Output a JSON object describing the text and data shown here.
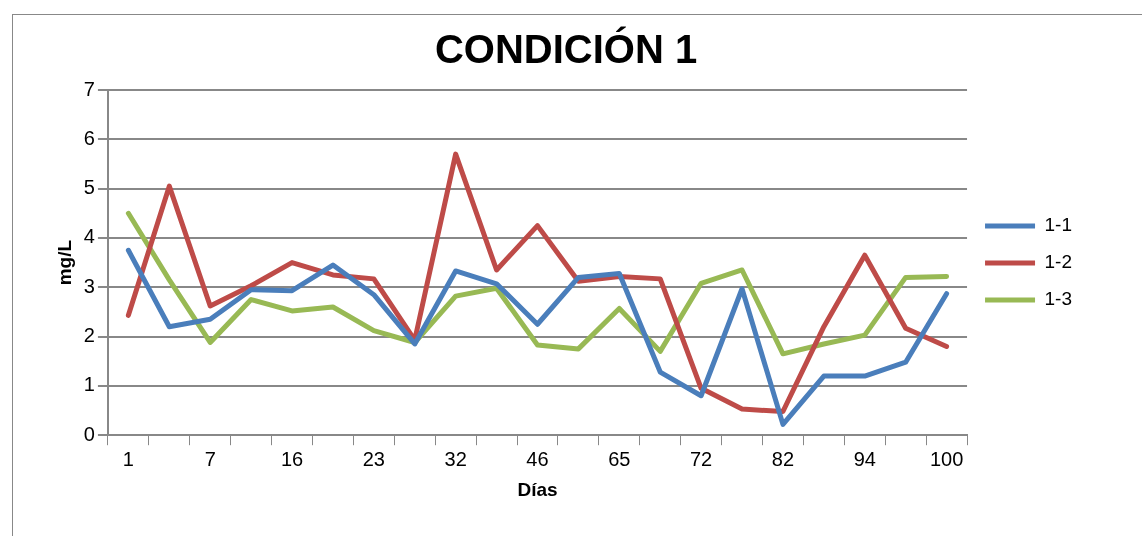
{
  "chart_data": {
    "type": "line",
    "title": "CONDICIÓN 1",
    "xlabel": "Días",
    "ylabel": "mg/L",
    "categories": [
      "1",
      null,
      "7",
      null,
      "16",
      null,
      "23",
      null,
      "32",
      null,
      "46",
      null,
      "65",
      null,
      "72",
      null,
      "82",
      null,
      "94",
      null,
      "100"
    ],
    "series": [
      {
        "name": "1-1",
        "color": "#4a7ebb",
        "values": [
          3.75,
          2.2,
          2.35,
          2.95,
          2.93,
          3.45,
          2.85,
          1.85,
          3.33,
          3.07,
          2.25,
          3.2,
          3.28,
          1.28,
          0.8,
          2.97,
          0.22,
          1.2,
          1.2,
          1.48,
          2.87
        ]
      },
      {
        "name": "1-2",
        "color": "#be4b48",
        "values": [
          2.43,
          5.05,
          2.62,
          3.03,
          3.5,
          3.25,
          3.17,
          1.93,
          5.7,
          3.35,
          4.25,
          3.12,
          3.22,
          3.17,
          0.95,
          0.53,
          0.48,
          2.2,
          3.65,
          2.17,
          1.8
        ]
      },
      {
        "name": "1-3",
        "color": "#98b954",
        "values": [
          4.5,
          3.15,
          1.88,
          2.75,
          2.52,
          2.6,
          2.12,
          1.88,
          2.82,
          2.98,
          1.83,
          1.75,
          2.57,
          1.7,
          3.08,
          3.35,
          1.65,
          1.85,
          2.03,
          3.2,
          3.22
        ]
      }
    ],
    "ylim": [
      0,
      7
    ],
    "yticks": [
      0,
      1,
      2,
      3,
      4,
      5,
      6,
      7
    ],
    "grid": "y",
    "legend": "right",
    "marker": "none",
    "line_style": "solid"
  }
}
